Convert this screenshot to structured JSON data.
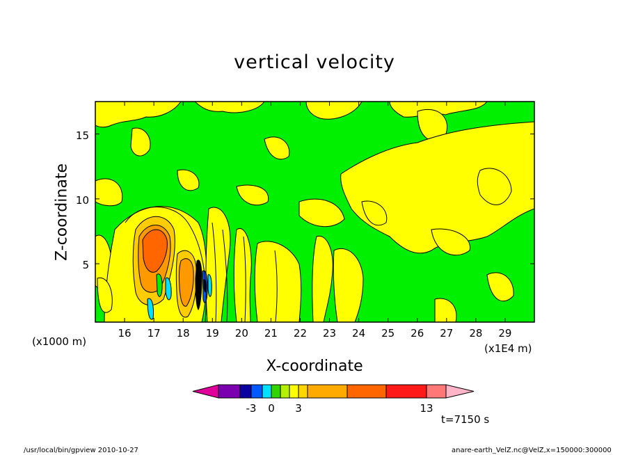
{
  "chart_data": {
    "type": "heatmap",
    "title": "vertical velocity",
    "xlabel": "X-coordinate",
    "ylabel": "Z-coordinate",
    "x_unit_left": "(x1000 m)",
    "x_unit_right": "(x1E4 m)",
    "x_ticks": [
      "16",
      "17",
      "18",
      "19",
      "20",
      "21",
      "22",
      "23",
      "24",
      "25",
      "26",
      "27",
      "28",
      "29"
    ],
    "x_tick_values": [
      16,
      17,
      18,
      19,
      20,
      21,
      22,
      23,
      24,
      25,
      26,
      27,
      28,
      29
    ],
    "xlim": [
      15,
      30
    ],
    "y_ticks": [
      "5",
      "10",
      "15"
    ],
    "y_tick_values": [
      5,
      10,
      15
    ],
    "ylim": [
      0.5,
      17.5
    ],
    "time_label": "t=7150 s",
    "colorbar": {
      "colors": [
        "#e0009a",
        "#7a00b0",
        "#0a00a0",
        "#0058ff",
        "#00e0ff",
        "#32d400",
        "#b4f000",
        "#ffff00",
        "#ffd600",
        "#ffaa00",
        "#ff6600",
        "#ff1a1a",
        "#ff7878",
        "#ffb4c8"
      ],
      "labels": [
        "-3",
        "0",
        "3",
        "13"
      ]
    },
    "field_colors": {
      "green": "#00f000",
      "yellow": "#ffff00",
      "orange": "#ff9900",
      "dark_orange": "#ff6600",
      "black": "#000000",
      "cyan": "#00e0ff",
      "blue": "#0058ff"
    }
  },
  "footer": {
    "left": "/usr/local/bin/gpview   2010-10-27",
    "right": "anare-earth_VelZ.nc@VelZ,x=150000:300000"
  }
}
